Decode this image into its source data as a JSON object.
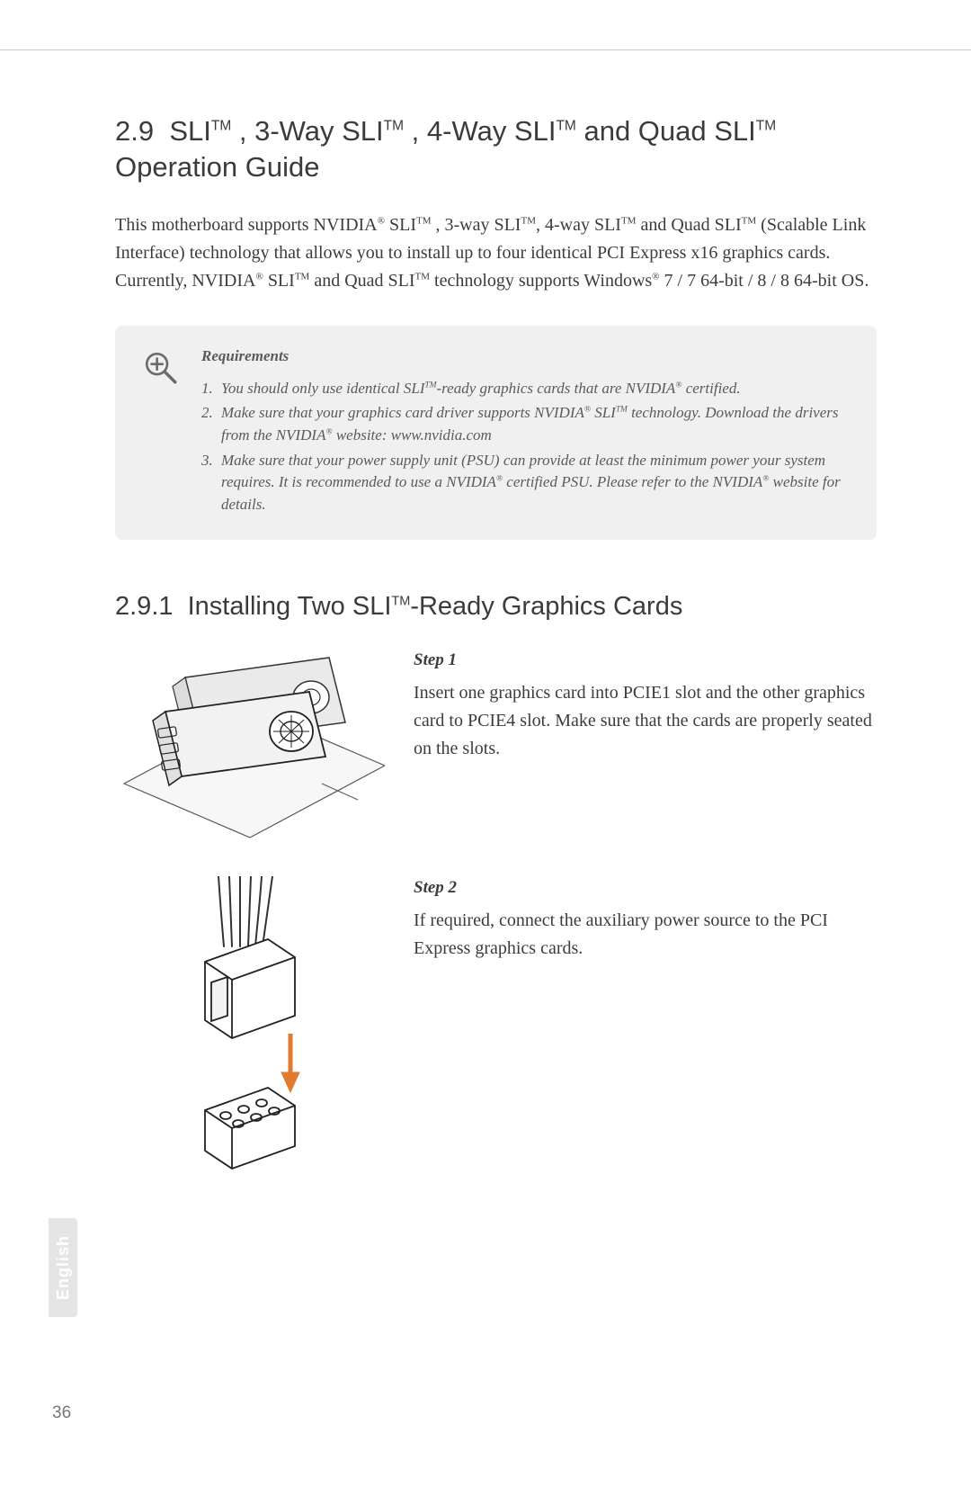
{
  "page_number": "36",
  "language_tab": "English",
  "colors": {
    "text_primary": "#3a3a3a",
    "text_muted": "#5a5a5a",
    "callout_bg": "#f0f0f0",
    "rule": "#cccccc",
    "tab_bg": "#e5e5e5",
    "tab_text": "#ffffff",
    "arrow": "#e07b2f"
  },
  "section": {
    "number": "2.9",
    "title_html": "SLI<sup>TM</sup> , 3-Way SLI<sup>TM</sup> , 4-Way SLI<sup>TM</sup> and Quad SLI<sup>TM</sup> Operation Guide",
    "intro_html": "This motherboard supports NVIDIA<sup>®</sup> SLI<sup>TM</sup> , 3-way SLI<sup>TM</sup>, 4-way SLI<sup>TM</sup> and Quad SLI<sup>TM</sup> (Scalable Link Interface) technology that allows you to install up to four identical PCI Express x16 graphics cards. Currently, NVIDIA<sup>®</sup> SLI<sup>TM</sup> and Quad SLI<sup>TM</sup> technology supports Windows<sup>®</sup> 7 / 7 64-bit / 8 / 8 64-bit OS."
  },
  "callout": {
    "title": "Requirements",
    "items": [
      "You should only use identical SLI<sup>TM</sup>-ready graphics cards that are NVIDIA<sup>®</sup> certified.",
      "Make sure that your graphics card driver supports NVIDIA<sup>®</sup> SLI<sup>TM</sup> technology. Download the drivers from the NVIDIA<sup>®</sup> website: www.nvidia.com",
      "Make sure that your power supply unit (PSU) can provide at least the minimum power your system requires. It is recommended to use a NVIDIA<sup>®</sup> certified PSU. Please refer to the NVIDIA<sup>®</sup> website for details."
    ]
  },
  "subsection": {
    "number": "2.9.1",
    "title_html": "Installing Two SLI<sup>TM</sup>-Ready Graphics Cards"
  },
  "steps": [
    {
      "label": "Step 1",
      "body": "Insert one graphics card into PCIE1 slot and the other graphics card to PCIE4 slot. Make sure that the cards are properly seated on the slots."
    },
    {
      "label": "Step 2",
      "body": "If required, connect the auxiliary power source to the PCI Express graphics cards."
    }
  ]
}
